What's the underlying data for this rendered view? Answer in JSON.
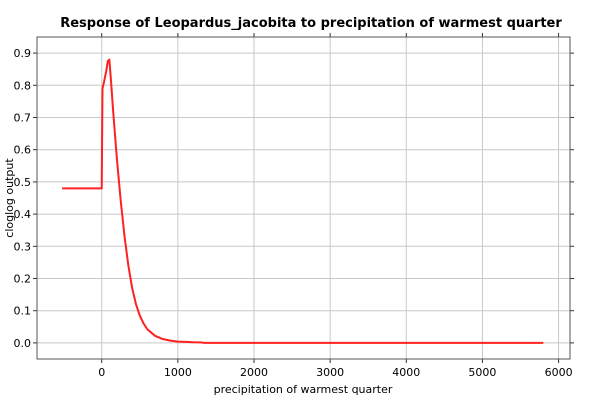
{
  "chart_data": {
    "type": "line",
    "title": "Response of Leopardus_jacobita to precipitation of warmest quarter",
    "xlabel": "precipitation of warmest quarter",
    "ylabel": "cloglog output",
    "xlim": [
      -850,
      6150
    ],
    "ylim": [
      -0.05,
      0.95
    ],
    "xticks": [
      0,
      1000,
      2000,
      3000,
      4000,
      5000,
      6000
    ],
    "yticks": [
      0.0,
      0.1,
      0.2,
      0.3,
      0.4,
      0.5,
      0.6,
      0.7,
      0.8,
      0.9
    ],
    "grid": true,
    "series_color": "#ff2020",
    "series": [
      {
        "x": [
          -520,
          -2,
          0,
          10,
          30,
          60,
          80,
          100,
          120,
          150,
          200,
          250,
          300,
          350,
          400,
          450,
          500,
          550,
          600,
          700,
          800,
          900,
          1000,
          1100,
          1200,
          1300,
          1350,
          1500,
          2000,
          3000,
          4000,
          5000,
          5800
        ],
        "y": [
          0.48,
          0.48,
          0.48,
          0.79,
          0.81,
          0.845,
          0.875,
          0.88,
          0.82,
          0.72,
          0.57,
          0.44,
          0.33,
          0.24,
          0.17,
          0.12,
          0.085,
          0.06,
          0.042,
          0.022,
          0.012,
          0.007,
          0.004,
          0.003,
          0.002,
          0.0015,
          0.0,
          0.0,
          0.0,
          0.0,
          0.0,
          0.0,
          0.0
        ]
      }
    ]
  }
}
